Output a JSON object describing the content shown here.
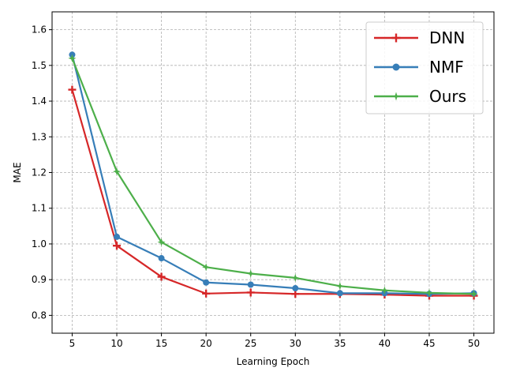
{
  "chart_data": {
    "type": "line",
    "title": "",
    "xlabel": "Learning Epoch",
    "ylabel": "MAE",
    "x": [
      5,
      10,
      15,
      20,
      25,
      30,
      35,
      40,
      45,
      50
    ],
    "xlim": [
      2.75,
      52.25
    ],
    "ylim": [
      0.75,
      1.65
    ],
    "xticks": [
      5,
      10,
      15,
      20,
      25,
      30,
      35,
      40,
      45,
      50
    ],
    "yticks": [
      0.8,
      0.9,
      1.0,
      1.1,
      1.2,
      1.3,
      1.4,
      1.5,
      1.6
    ],
    "grid": true,
    "legend_position": "top-right",
    "series": [
      {
        "name": "DNN",
        "color": "#d62728",
        "marker": "plus",
        "values": [
          1.432,
          0.995,
          0.908,
          0.861,
          0.864,
          0.86,
          0.86,
          0.858,
          0.855,
          0.855
        ]
      },
      {
        "name": "NMF",
        "color": "#377eb8",
        "marker": "circle",
        "values": [
          1.53,
          1.02,
          0.96,
          0.892,
          0.886,
          0.876,
          0.862,
          0.862,
          0.86,
          0.862
        ]
      },
      {
        "name": "Ours",
        "color": "#4daf4a",
        "marker": "star",
        "values": [
          1.52,
          1.203,
          1.005,
          0.935,
          0.917,
          0.905,
          0.882,
          0.87,
          0.863,
          0.86
        ]
      }
    ]
  }
}
